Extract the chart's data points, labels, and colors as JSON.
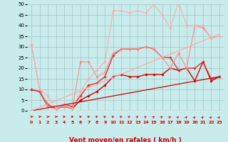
{
  "xlabel": "Vent moyen/en rafales ( km/h )",
  "xlim": [
    -0.5,
    23.5
  ],
  "ylim": [
    0,
    50
  ],
  "xticks": [
    0,
    1,
    2,
    3,
    4,
    5,
    6,
    7,
    8,
    9,
    10,
    11,
    12,
    13,
    14,
    15,
    16,
    17,
    18,
    19,
    20,
    21,
    22,
    23
  ],
  "yticks": [
    0,
    5,
    10,
    15,
    20,
    25,
    30,
    35,
    40,
    45,
    50
  ],
  "background_color": "#c8ecec",
  "grid_color": "#9fbfbf",
  "arrow_color": "#cc0000",
  "xlabel_color": "#cc0000",
  "xtick_color": "#cc0000",
  "series": [
    {
      "x": [
        0,
        1,
        2,
        3,
        4,
        5,
        6,
        7,
        8,
        9,
        10,
        11,
        12,
        13,
        14,
        15,
        16,
        17,
        18,
        19,
        20,
        21,
        22,
        23
      ],
      "y": [
        10,
        9,
        2,
        1,
        2,
        1,
        5,
        7,
        9,
        12,
        16,
        17,
        16,
        16,
        17,
        17,
        17,
        20,
        19,
        20,
        14,
        23,
        14,
        16
      ],
      "color": "#cc0000",
      "marker": "D",
      "markersize": 1.8,
      "linewidth": 1.0
    },
    {
      "x": [
        0,
        1,
        2,
        3,
        4,
        5,
        6,
        7,
        8,
        9,
        10,
        11,
        12,
        13,
        14,
        15,
        16,
        17,
        18,
        19,
        20,
        21,
        22,
        23
      ],
      "y": [
        10,
        9,
        3,
        1,
        3,
        2,
        7,
        12,
        13,
        16,
        26,
        29,
        29,
        29,
        30,
        29,
        25,
        25,
        19,
        20,
        20,
        23,
        15,
        16
      ],
      "color": "#dd3333",
      "marker": "D",
      "markersize": 1.8,
      "linewidth": 1.0
    },
    {
      "x": [
        0,
        1,
        2,
        3,
        4,
        5,
        6,
        7,
        8,
        9,
        10,
        11,
        12,
        13,
        14,
        15,
        16,
        17,
        18,
        19,
        20,
        21,
        22,
        23
      ],
      "y": [
        31,
        10,
        2,
        1,
        2,
        1,
        23,
        23,
        16,
        18,
        27,
        29,
        29,
        29,
        30,
        29,
        25,
        20,
        27,
        20,
        40,
        39,
        34,
        35
      ],
      "color": "#ff8888",
      "marker": "D",
      "markersize": 1.8,
      "linewidth": 0.8
    },
    {
      "x": [
        0,
        1,
        2,
        3,
        4,
        5,
        6,
        7,
        8,
        9,
        10,
        11,
        12,
        13,
        14,
        15,
        16,
        17,
        18,
        19,
        20,
        21,
        22,
        23
      ],
      "y": [
        31,
        10,
        7,
        1,
        3,
        1,
        9,
        15,
        19,
        23,
        47,
        47,
        46,
        47,
        46,
        50,
        45,
        39,
        51,
        40,
        40,
        40,
        34,
        35
      ],
      "color": "#ffaaaa",
      "marker": "D",
      "markersize": 1.8,
      "linewidth": 0.8
    },
    {
      "x": [
        0,
        23
      ],
      "y": [
        0,
        16
      ],
      "color": "#cc0000",
      "marker": null,
      "linewidth": 0.9
    },
    {
      "x": [
        0,
        23
      ],
      "y": [
        0,
        36
      ],
      "color": "#ffaaaa",
      "marker": null,
      "linewidth": 0.9
    }
  ]
}
